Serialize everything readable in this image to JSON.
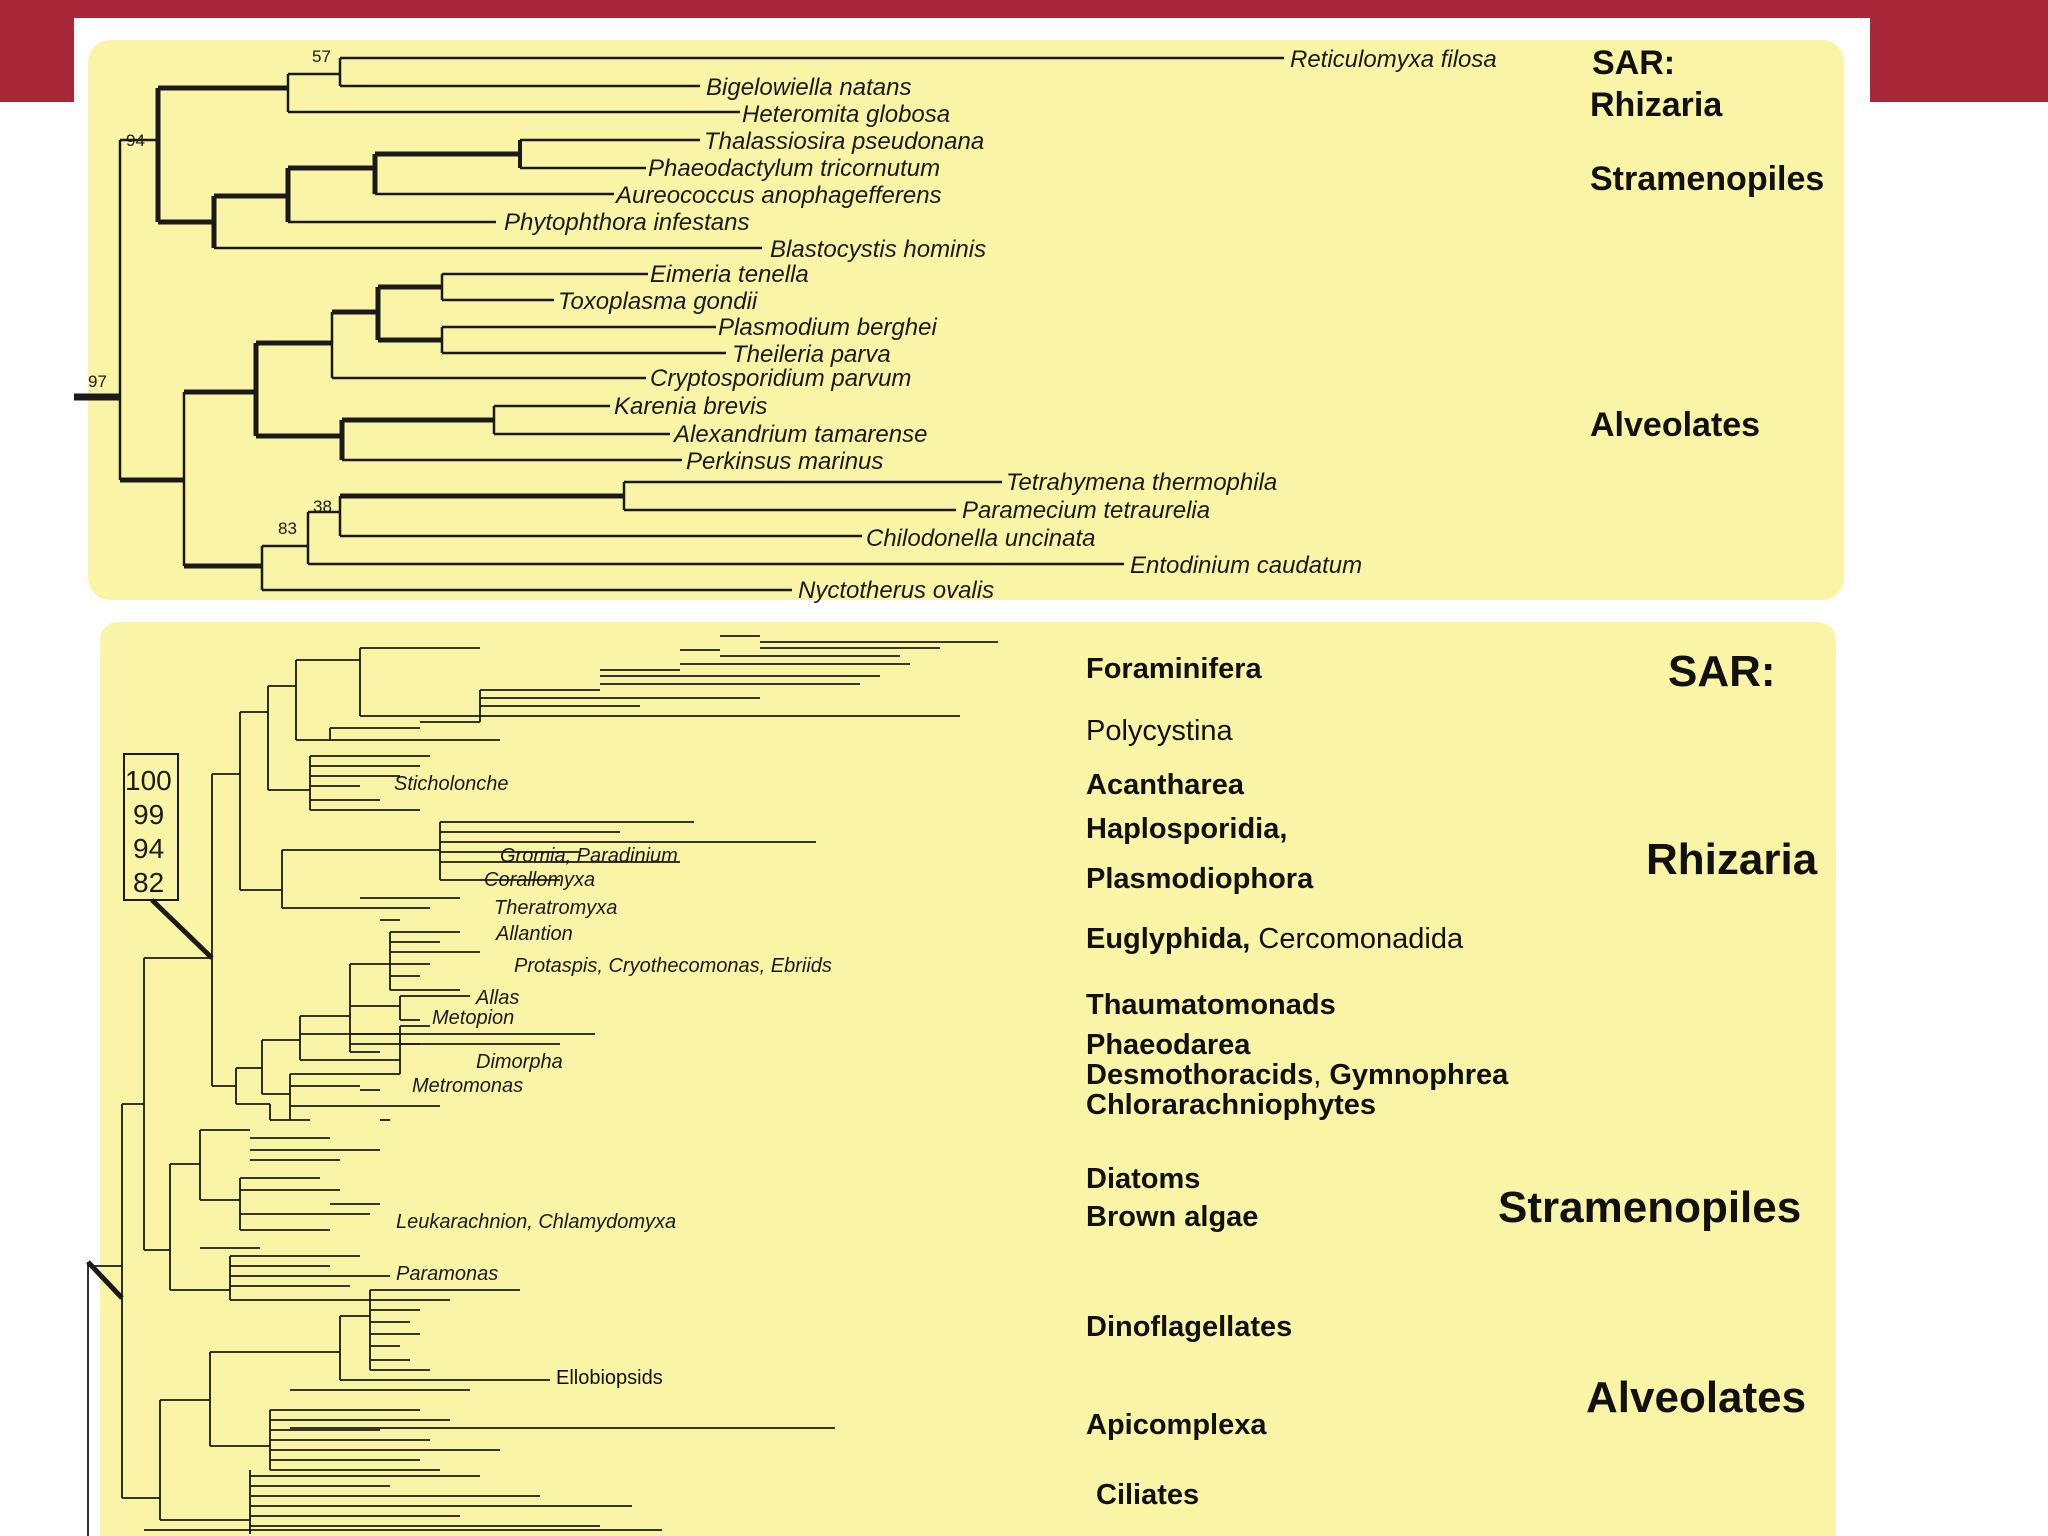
{
  "colors": {
    "header_bar": "#a8283a",
    "panel_fill": "#faf5a6",
    "branch": "#1a1a1a"
  },
  "top_tree": {
    "taxa": [
      "Reticulomyxa filosa",
      "Bigelowiella natans",
      "Heteromita globosa",
      "Thalassiosira pseudonana",
      "Phaeodactylum tricornutum",
      "Aureococcus anophagefferens",
      "Phytophthora infestans",
      "Blastocystis hominis",
      "Eimeria tenella",
      "Toxoplasma gondii",
      "Plasmodium berghei",
      "Theileria parva",
      "Cryptosporidium parvum",
      "Karenia brevis",
      "Alexandrium tamarense",
      "Perkinsus marinus",
      "Tetrahymena thermophila",
      "Paramecium tetraurelia",
      "Chilodonella uncinata",
      "Entodinium caudatum",
      "Nyctotherus ovalis"
    ],
    "support_values": [
      "57",
      "94",
      "97",
      "38",
      "83"
    ],
    "groups": {
      "sar": "SAR:",
      "rhizaria": "Rhizaria",
      "stramenopiles": "Stramenopiles",
      "alveolates": "Alveolates"
    }
  },
  "bottom_tree": {
    "support_box": [
      "100",
      "99",
      "94",
      "82"
    ],
    "clade_labels": [
      "Sticholonche",
      "Gromia, Paradinium",
      "Corallomyxa",
      "Theratromyxa",
      "Allantion",
      "Protaspis, Cryothecomonas, Ebriids",
      "Allas",
      "Metopion",
      "Dimorpha",
      "Metromonas",
      "Leukarachnion, Chlamydomyxa",
      "Paramonas",
      "Ellobiopsids"
    ],
    "groups": {
      "foraminifera": "Foraminifera",
      "polycystina": "Polycystina",
      "acantharea": "Acantharea",
      "haplosporidia": "Haplosporidia,",
      "plasmodiophora": "Plasmodiophora",
      "euglyphida": "Euglyphida,",
      "cercomonadida": "Cercomonadida",
      "thaumatomonads": "Thaumatomonads",
      "phaeodarea": "Phaeodarea",
      "desmothoracids": "Desmothoracids",
      "comma": ",",
      "gymnophrea": "Gymnophrea",
      "chlorarachniophytes": "Chlorarachniophytes",
      "diatoms": "Diatoms",
      "brown_algae": "Brown algae",
      "dinoflagellates": "Dinoflagellates",
      "apicomplexa": "Apicomplexa",
      "ciliates": "Ciliates"
    },
    "big_labels": {
      "sar": "SAR:",
      "rhizaria": "Rhizaria",
      "stramenopiles": "Stramenopiles",
      "alveolates": "Alveolates"
    }
  }
}
